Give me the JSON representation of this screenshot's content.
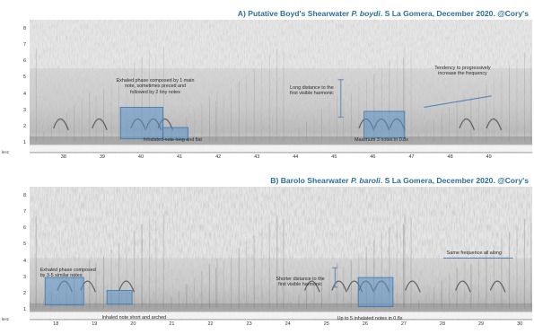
{
  "chart_data": [
    {
      "type": "heatmap",
      "title_parts": {
        "prefix": "A) Putative Boyd's Shearwater ",
        "species": "P. boydi",
        "suffix": ". S La Gomera, December 2020. @Cory's"
      },
      "ylabel": "kHz",
      "yticks": [
        "1",
        "2",
        "3",
        "4",
        "5",
        "6",
        "7",
        "8"
      ],
      "xticks": [
        "38",
        "39",
        "40",
        "41",
        "42",
        "43",
        "44",
        "45",
        "46",
        "47",
        "48",
        "49"
      ],
      "xlim": [
        37.1,
        50.1
      ],
      "ylim": [
        0.4,
        8.6
      ],
      "annotations": [
        {
          "key": "exhaled",
          "lines": [
            "Exhaled phase composed by 1 main",
            "note, sometimes preced and",
            "followed by 2 tiny notes"
          ]
        },
        {
          "key": "inhaled",
          "lines": [
            "Inhalated note long and flat"
          ]
        },
        {
          "key": "harmonic",
          "lines": [
            "Long distance to the",
            "first visible harmonic"
          ]
        },
        {
          "key": "max",
          "lines": [
            "Maximum 3 notes in 0.8s"
          ]
        },
        {
          "key": "tendency",
          "lines": [
            "Tendency to progressively",
            "increase the frequency"
          ]
        }
      ]
    },
    {
      "type": "heatmap",
      "title_parts": {
        "prefix": "B) Barolo Shearwater ",
        "species": "P. baroli",
        "suffix": ". S La Gomera, December 2020. @Cory's"
      },
      "ylabel": "kHz",
      "yticks": [
        "1",
        "2",
        "3",
        "4",
        "5",
        "6",
        "7",
        "8"
      ],
      "xticks": [
        "18",
        "19",
        "20",
        "21",
        "22",
        "23",
        "24",
        "25",
        "26",
        "27",
        "28",
        "29",
        "30"
      ],
      "xlim": [
        17.3,
        30.3
      ],
      "ylim": [
        0.4,
        8.6
      ],
      "annotations": [
        {
          "key": "exhaled",
          "lines": [
            "Exhaled phase composed",
            "by 3-5 similar notes"
          ]
        },
        {
          "key": "inhaled",
          "lines": [
            "Inhaled note short and arched"
          ]
        },
        {
          "key": "harmonic",
          "lines": [
            "Shorter distance to the",
            "first visible harmonic"
          ]
        },
        {
          "key": "upto",
          "lines": [
            "Up to 5 inhalated notes in 0.8s"
          ]
        },
        {
          "key": "same",
          "lines": [
            "Same frequence all along"
          ]
        }
      ]
    }
  ],
  "colors": {
    "title": "#2f6f95",
    "box_fill": "#5b93c9",
    "box_stroke": "#3f76ad",
    "marker": "#5a86b8"
  }
}
